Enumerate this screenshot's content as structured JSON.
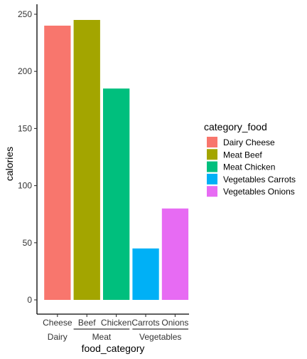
{
  "chart_data": {
    "type": "bar",
    "xlabel": "food_category",
    "ylabel": "calories",
    "ylim": [
      0,
      250
    ],
    "yticks": [
      0,
      50,
      100,
      150,
      200,
      250
    ],
    "grid": false,
    "legend_position": "right",
    "legend_title": "category_food",
    "groups": [
      {
        "label": "Dairy",
        "categories": [
          "Cheese"
        ]
      },
      {
        "label": "Meat",
        "categories": [
          "Beef",
          "Chicken"
        ]
      },
      {
        "label": "Vegetables",
        "categories": [
          "Carrots",
          "Onions"
        ]
      }
    ],
    "categories": [
      "Cheese",
      "Beef",
      "Chicken",
      "Carrots",
      "Onions"
    ],
    "values": [
      240,
      245,
      185,
      45,
      80
    ],
    "series": [
      {
        "name": "Dairy Cheese",
        "color": "#F8766D"
      },
      {
        "name": "Meat Beef",
        "color": "#A3A500"
      },
      {
        "name": "Meat Chicken",
        "color": "#00BF7D"
      },
      {
        "name": "Vegetables Carrots",
        "color": "#00B0F6"
      },
      {
        "name": "Vegetables Onions",
        "color": "#E76BF3"
      }
    ]
  }
}
